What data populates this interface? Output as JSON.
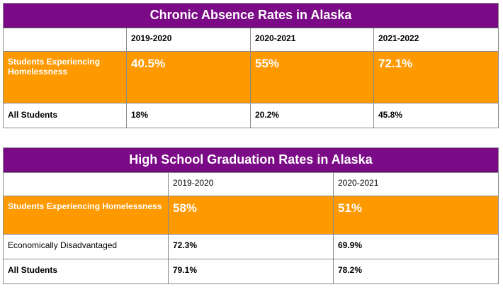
{
  "tables": [
    {
      "title": "Chronic Absence Rates in Alaska",
      "headers": [
        "",
        "2019-2020",
        "2020-2021",
        "2021-2022"
      ],
      "rows": [
        {
          "label": "Students Experiencing Homelessness",
          "values": [
            "40.5%",
            "55%",
            "72.1%"
          ]
        },
        {
          "label": "All Students",
          "values": [
            "18%",
            "20.2%",
            "45.8%"
          ]
        }
      ]
    },
    {
      "title": "High School Graduation Rates in Alaska",
      "headers": [
        "",
        "2019-2020",
        "2020-2021"
      ],
      "rows": [
        {
          "label": "Students Experiencing Homelessness",
          "values": [
            "58%",
            "51%"
          ]
        },
        {
          "label": "Economically Disadvantaged",
          "values": [
            "72.3%",
            "69.9%"
          ]
        },
        {
          "label": "All Students",
          "values": [
            "79.1%",
            "78.2%"
          ]
        }
      ]
    }
  ],
  "colors": {
    "title_bg": "#7b0a86",
    "highlight_bg": "#ff9900"
  }
}
